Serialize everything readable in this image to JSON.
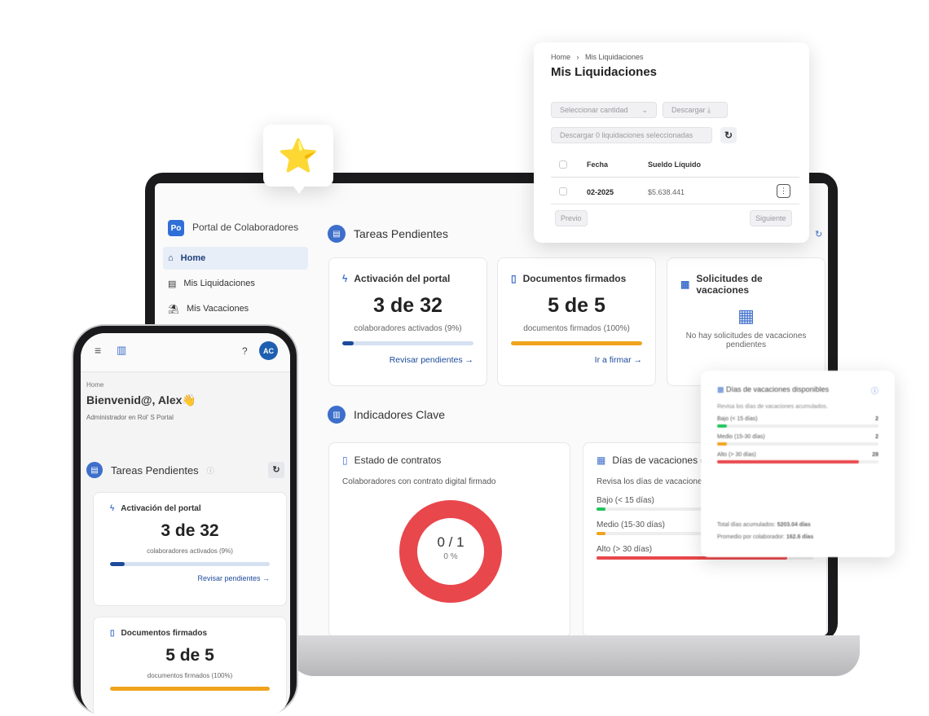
{
  "laptop": {
    "sidebar": {
      "logo": "Po",
      "title": "Portal de Colaboradores",
      "items": [
        {
          "label": "Home",
          "icon": "home-icon"
        },
        {
          "label": "Mis Liquidaciones",
          "icon": "document-icon"
        },
        {
          "label": "Mis Vacaciones",
          "icon": "beach-icon"
        }
      ]
    },
    "tareas": {
      "title": "Tareas Pendientes",
      "cards": [
        {
          "title": "Activación del portal",
          "value": "3 de 32",
          "sub": "colaboradores activados (9%)",
          "progress": 9,
          "color": "#1d4b9a",
          "link": "Revisar pendientes →"
        },
        {
          "title": "Documentos firmados",
          "value": "5 de 5",
          "sub": "documentos firmados (100%)",
          "progress": 100,
          "color": "#f0a31c",
          "link": "Ir a firmar →"
        },
        {
          "title": "Solicitudes de vacaciones",
          "empty": "No hay solicitudes de vacaciones pendientes"
        }
      ]
    },
    "indicadores": {
      "title": "Indicadores Clave",
      "contratos": {
        "title": "Estado de contratos",
        "sub": "Colaboradores con contrato digital firmado",
        "value": "0 / 1",
        "pct": "0 %",
        "signed_fraction": 0,
        "color": "#e8474c"
      },
      "vacaciones": {
        "title": "Días de vacaciones d",
        "sub": "Revisa los días de vacacione",
        "rows": [
          {
            "label": "Bajo (< 15 días)",
            "value": "",
            "fill": 4,
            "color": "#22c35e"
          },
          {
            "label": "Medio (15-30 días)",
            "value": "",
            "fill": 4,
            "color": "#f0a31c"
          },
          {
            "label": "Alto (> 30 días)",
            "value": "28",
            "fill": 88,
            "color": "#e8474c"
          }
        ]
      }
    }
  },
  "liquidaciones": {
    "breadcrumb": [
      "Home",
      "Mis Liquidaciones"
    ],
    "title": "Mis Liquidaciones",
    "select_placeholder": "Seleccionar cantidad",
    "download": "Descargar",
    "download_selected": "Descargar 0 liquidaciones seleccionadas",
    "columns": [
      "Fecha",
      "Sueldo Líquido"
    ],
    "rows": [
      {
        "fecha": "02-2025",
        "sueldo": "$5.638.441"
      }
    ],
    "prev": "Previo",
    "next": "Siguiente"
  },
  "vac_popup": {
    "title": "Días de vacaciones disponibles",
    "sub": "Revisa los días de vacaciones acumulados.",
    "rows": [
      {
        "label": "Bajo (< 15 días)",
        "value": "2",
        "fill": 6,
        "color": "#22c35e"
      },
      {
        "label": "Medio (15-30 días)",
        "value": "2",
        "fill": 6,
        "color": "#f0a31c"
      },
      {
        "label": "Alto (> 30 días)",
        "value": "28",
        "fill": 88,
        "color": "#e8474c"
      }
    ],
    "total_label": "Total días acumulados:",
    "total": "5203.04 días",
    "avg_label": "Promedio por colaborador:",
    "avg": "162.6 días"
  },
  "phone": {
    "avatar": "AC",
    "breadcrumb": "Home",
    "greeting": "Bienvenid@, Alex👋",
    "role": "Administrador en Rol' S Portal",
    "tareas": "Tareas Pendientes",
    "cards": [
      {
        "title": "Activación del portal",
        "value": "3 de 32",
        "sub": "colaboradores activados (9%)",
        "progress": 9,
        "color": "#1d4b9a",
        "link": "Revisar pendientes →"
      },
      {
        "title": "Documentos firmados",
        "value": "5 de 5",
        "sub": "documentos firmados (100%)",
        "progress": 100,
        "color": "#f0a31c"
      }
    ]
  },
  "star_badge": "⭐"
}
